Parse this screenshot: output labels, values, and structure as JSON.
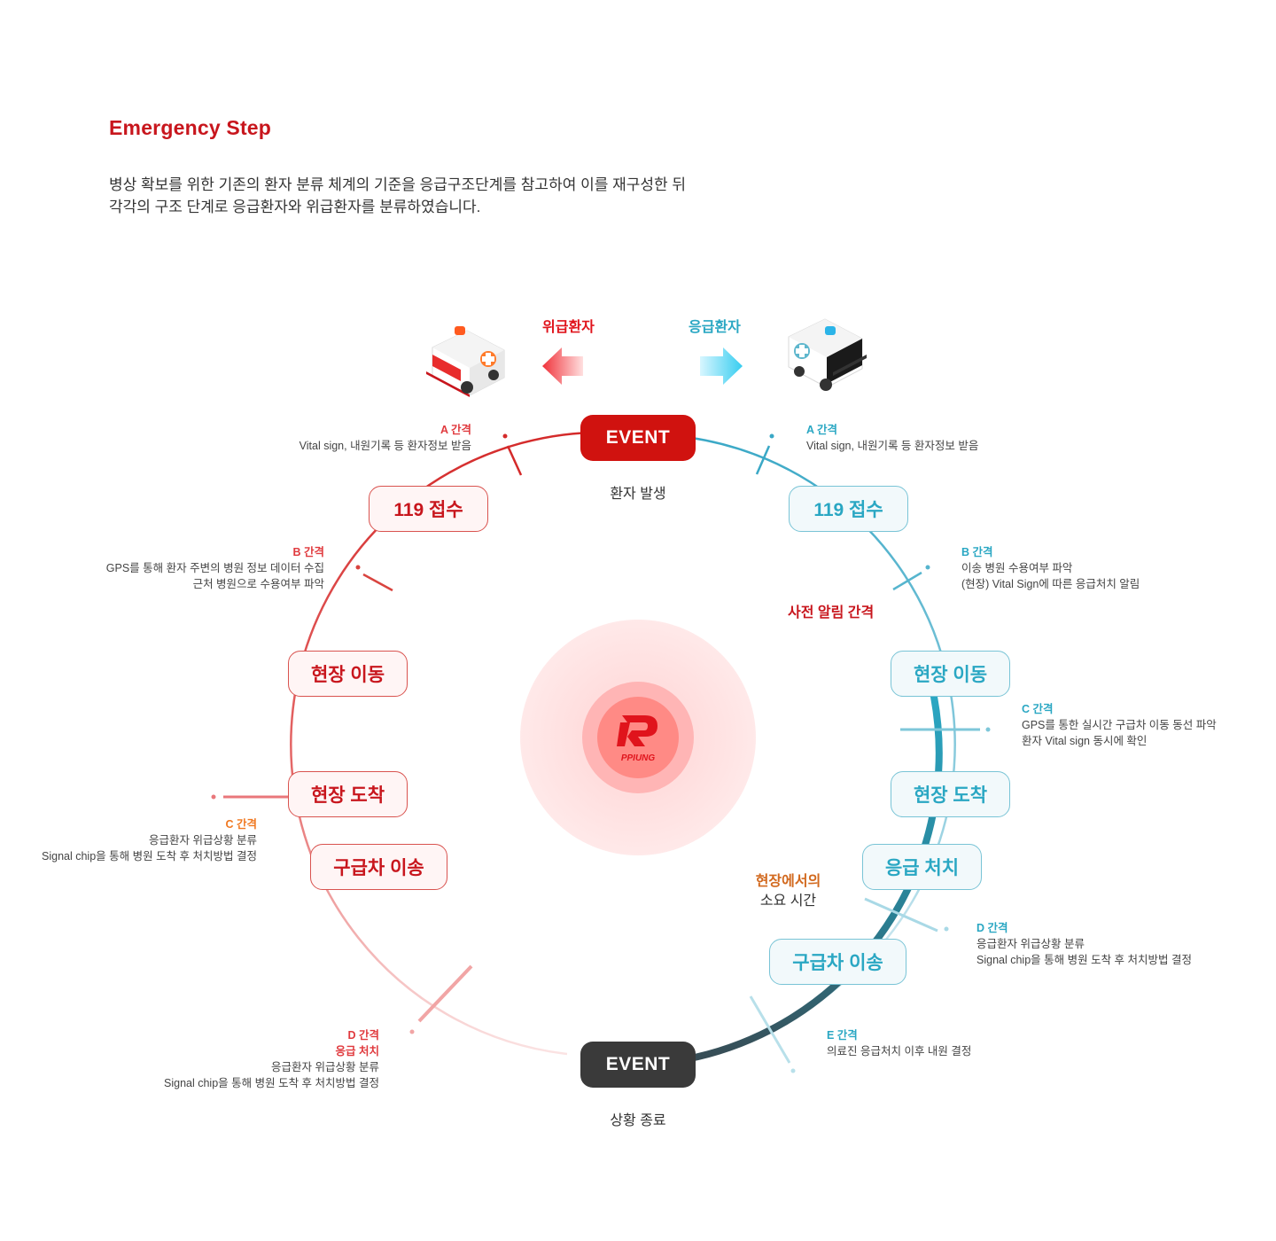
{
  "header": {
    "title": "Emergency Step",
    "description_line1": "병상 확보를 위한 기존의 환자 분류 체계의 기준을 응급구조단계를 참고하여 이를 재구성한 뒤",
    "description_line2": "각각의 구조 단계로 응급환자와 위급환자를 분류하였습니다."
  },
  "legend": {
    "critical_label": "위급환자",
    "emergency_label": "응급환자"
  },
  "events": {
    "start_label": "EVENT",
    "start_caption": "환자 발생",
    "end_label": "EVENT",
    "end_caption": "상황 종료"
  },
  "left_steps": [
    "119 접수",
    "현장 이동",
    "현장 도착",
    "구급차 이송"
  ],
  "right_steps": [
    "119 접수",
    "현장 이동",
    "현장 도착",
    "응급 처치",
    "구급차 이송"
  ],
  "labels": {
    "pre_notice": "사전 알림 간격",
    "onsite_line1": "현장에서의",
    "onsite_line2": "소요 시간"
  },
  "logo_text": "PPIUNG",
  "left_notes": {
    "a": {
      "head": "A 간격",
      "l1": "Vital sign, 내원기록 등 환자정보 받음"
    },
    "b": {
      "head": "B 간격",
      "l1": "GPS를 통해 환자 주변의 병원 정보 데이터 수집",
      "l2": "근처 병원으로 수용여부 파악"
    },
    "c": {
      "head": "C 간격",
      "l1": "응급환자 위급상황 분류",
      "l2": "Signal chip을 통해 병원 도착 후 처치방법 결정"
    },
    "d": {
      "head": "D 간격",
      "head2": "응급 처치",
      "l1": "응급환자 위급상황 분류",
      "l2": "Signal chip을 통해 병원 도착 후 처치방법 결정"
    }
  },
  "right_notes": {
    "a": {
      "head": "A 간격",
      "l1": "Vital sign, 내원기록 등 환자정보 받음"
    },
    "b": {
      "head": "B 간격",
      "l1": "이송 병원 수용여부 파악",
      "l2": "(현장) Vital Sign에 따른 응급처치 알림"
    },
    "c": {
      "head": "C 간격",
      "l1": "GPS를 통한 실시간 구급차 이동 동선 파악",
      "l2": "환자 Vital sign 동시에 확인"
    },
    "d": {
      "head": "D 간격",
      "l1": "응급환자 위급상황 분류",
      "l2": "Signal chip을 통해 병원 도착 후 처치방법 결정"
    },
    "e": {
      "head": "E 간격",
      "l1": "의료진 응급처치 이후 내원 결정"
    }
  },
  "colors": {
    "brand_red": "#c8161d",
    "accent_blue": "#2aa7c3",
    "dark": "#3a3a3a",
    "orange": "#f07820"
  },
  "icons": [
    "red-ambulance-icon",
    "blue-ambulance-icon",
    "left-arrow-icon",
    "right-arrow-icon",
    "ppiung-logo-icon"
  ]
}
